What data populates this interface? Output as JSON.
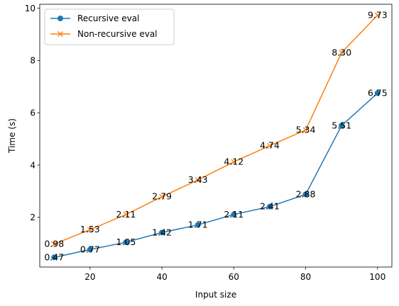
{
  "chart_data": {
    "type": "line",
    "title": "",
    "xlabel": "Input size",
    "ylabel": "Time (s)",
    "x": [
      10,
      20,
      30,
      40,
      50,
      60,
      70,
      80,
      90,
      100
    ],
    "xlim": [
      6,
      104
    ],
    "ylim": [
      0.1,
      10.15
    ],
    "xticks": [
      20,
      40,
      60,
      80,
      100
    ],
    "yticks": [
      2,
      4,
      6,
      8,
      10
    ],
    "grid": false,
    "legend": "top-left",
    "series": [
      {
        "name": "Recursive eval",
        "marker": "circle",
        "color": "#1f77b4",
        "values": [
          0.47,
          0.77,
          1.05,
          1.42,
          1.71,
          2.11,
          2.41,
          2.88,
          5.51,
          6.75
        ],
        "labels": [
          "0.47",
          "0.77",
          "1.05",
          "1.42",
          "1.71",
          "2.11",
          "2.41",
          "2.88",
          "5.51",
          "6.75"
        ]
      },
      {
        "name": "Non-recursive eval",
        "marker": "x",
        "color": "#ff7f0e",
        "values": [
          0.98,
          1.53,
          2.11,
          2.79,
          3.43,
          4.12,
          4.74,
          5.34,
          8.3,
          9.73
        ],
        "labels": [
          "0.98",
          "1.53",
          "2.11",
          "2.79",
          "3.43",
          "4.12",
          "4.74",
          "5.34",
          "8.30",
          "9.73"
        ]
      }
    ]
  }
}
